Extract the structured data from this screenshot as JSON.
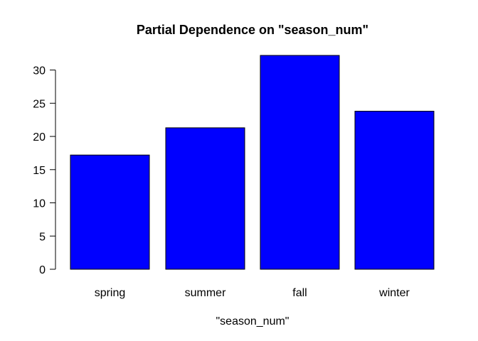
{
  "chart_data": {
    "type": "bar",
    "title": "Partial Dependence on \"season_num\"",
    "xlabel": "\"season_num\"",
    "ylabel": "",
    "categories": [
      "spring",
      "summer",
      "fall",
      "winter"
    ],
    "values": [
      17.2,
      21.3,
      32.2,
      23.8
    ],
    "ylim": [
      0,
      32.2
    ],
    "yticks": [
      0,
      5,
      10,
      15,
      20,
      25,
      30
    ],
    "bar_color": "#0000ff",
    "bar_border_color": "#000000",
    "grid": false,
    "legend": "none"
  }
}
